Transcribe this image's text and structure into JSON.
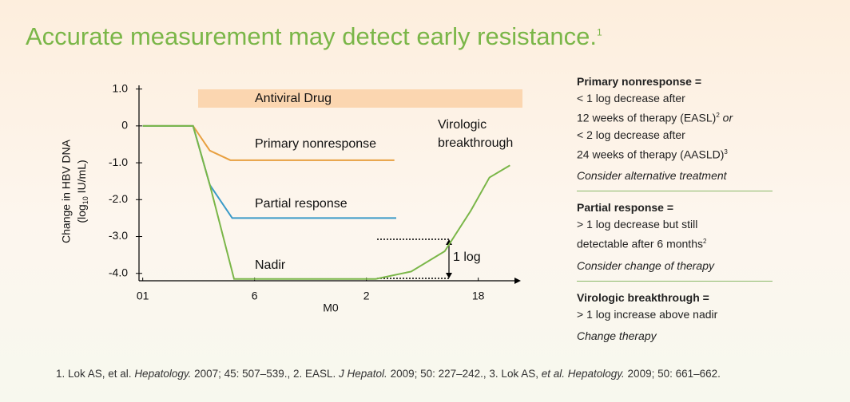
{
  "title": "Accurate measurement may detect early resistance.",
  "title_sup": "1",
  "chart_data": {
    "type": "line",
    "y_label": [
      "Change in HBV DNA",
      {
        "parts": [
          "(log",
          "10",
          " IU/mL)"
        ]
      }
    ],
    "x_label": "M0",
    "xlim": [
      -0.2,
      20.2
    ],
    "xticks": [
      {
        "value": 0,
        "label": "01"
      },
      6,
      {
        "value": 12,
        "label": "2"
      },
      18
    ],
    "ylim": [
      -4.2,
      1.1
    ],
    "yticks": [
      {
        "value": 1,
        "label": "1.0"
      },
      0,
      {
        "value": -1,
        "label": "-1.0"
      },
      {
        "value": -2,
        "label": "-2.0"
      },
      {
        "value": -3,
        "label": "-3.0"
      },
      {
        "value": -4,
        "label": "-4.0"
      }
    ],
    "series": [
      {
        "name": "Primary nonresponse",
        "color": "#e8a040",
        "x": [
          0,
          2.7,
          3.6,
          4.7,
          13.5
        ],
        "values": [
          0,
          0,
          -0.67,
          -0.93,
          -0.93
        ]
      },
      {
        "name": "Partial response",
        "color": "#3a9ac8",
        "x": [
          0,
          2.7,
          3.6,
          4.8,
          13.6
        ],
        "values": [
          0,
          0,
          -1.6,
          -2.5,
          -2.5
        ]
      },
      {
        "name": "Nadir",
        "color": "#7ab648",
        "x": [
          0,
          2.7,
          3.6,
          4.9,
          12.5,
          14.4,
          16.2,
          17.6,
          18.6,
          19.7
        ],
        "values": [
          0,
          0,
          -1.6,
          -4.15,
          -4.15,
          -3.95,
          -3.4,
          -2.3,
          -1.4,
          -1.07
        ]
      }
    ],
    "annotations": {
      "drug": "Antiviral Drug",
      "breakthrough": [
        "Virologic",
        "breakthrough"
      ],
      "log": "1 log"
    }
  },
  "panels": [
    {
      "heading": "Primary nonresponse =",
      "lines": [
        [
          {
            "text": "< 1 log decrease after"
          }
        ],
        [
          {
            "text": "12 weeks of therapy (EASL)"
          },
          {
            "text": "2",
            "style": "sup"
          },
          {
            "text": " or",
            "style": "italic"
          }
        ],
        [
          {
            "text": "< 2 log decrease after"
          }
        ],
        [
          {
            "text": "24 weeks of therapy (AASLD)"
          },
          {
            "text": "3",
            "style": "sup"
          }
        ]
      ],
      "action": "Consider alternative treatment"
    },
    {
      "heading": "Partial response =",
      "lines": [
        [
          {
            "text": "> 1 log decrease but still"
          }
        ],
        [
          {
            "text": "detectable after 6 months"
          },
          {
            "text": "2",
            "style": "sup"
          }
        ]
      ],
      "action": "Consider change of therapy"
    },
    {
      "heading": "Virologic breakthrough =",
      "lines": [
        [
          {
            "text": "> 1 log increase above nadir"
          }
        ]
      ],
      "action": "Change therapy"
    }
  ],
  "footnote": [
    {
      "text": "1. Lok AS, et al. "
    },
    {
      "text": "Hepatology.",
      "style": "italic"
    },
    {
      "text": " 2007; 45: 507–539., 2. EASL. "
    },
    {
      "text": "J Hepatol.",
      "style": "italic"
    },
    {
      "text": " 2009; 50: 227–242., 3. Lok AS, "
    },
    {
      "text": "et al. Hepatology.",
      "style": "italic"
    },
    {
      "text": " 2009; 50: 661–662."
    }
  ]
}
